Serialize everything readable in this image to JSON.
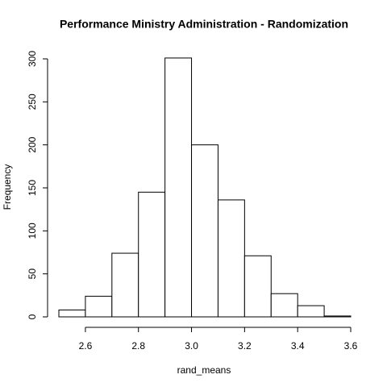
{
  "chart_data": {
    "type": "histogram",
    "title": "Performance Ministry Administration - Randomization",
    "x_label": "rand_means",
    "y_label": "Frequency",
    "bins": [
      2.5,
      2.6,
      2.7,
      2.8,
      2.9,
      3.0,
      3.1,
      3.2,
      3.3,
      3.4,
      3.5,
      3.6
    ],
    "counts": [
      8,
      24,
      74,
      145,
      301,
      200,
      136,
      71,
      27,
      13,
      1
    ],
    "color": "#ffffff",
    "edge_color": "#000000",
    "xlim": [
      2.5,
      3.6
    ],
    "xticks": [
      2.6,
      2.8,
      {
        "value": 3,
        "label": "3.0"
      },
      3.2,
      3.4,
      3.6
    ],
    "ylim": [
      0,
      300
    ],
    "yticks": [
      0,
      50,
      100,
      150,
      200,
      250,
      300
    ]
  }
}
